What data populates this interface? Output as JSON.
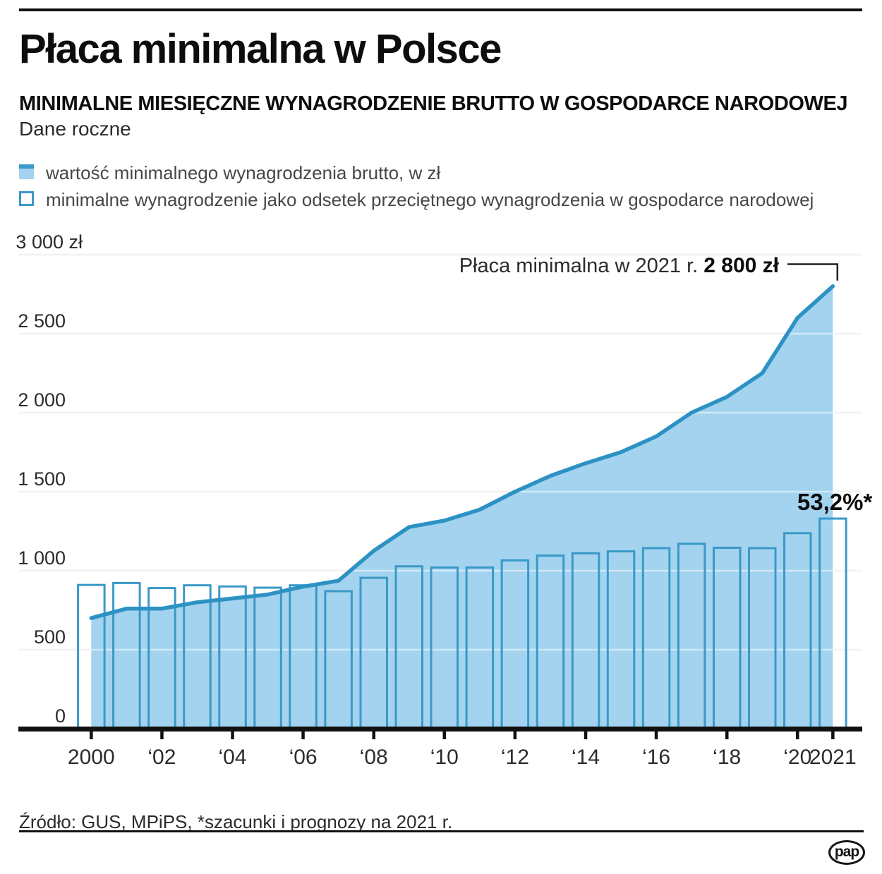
{
  "page": {
    "title": "Płaca minimalna w Polsce",
    "subtitle": "MINIMALNE MIESIĘCZNE WYNAGRODZENIE BRUTTO W GOSPODARCE NARODOWEJ",
    "period": "Dane roczne",
    "source": "Źródło: GUS, MPiPS, *szacunki i prognozy na 2021 r.",
    "logo_text": "pap"
  },
  "legend": {
    "items": [
      {
        "swatch": "area",
        "label": "wartość minimalnego wynagrodzenia brutto, w zł"
      },
      {
        "swatch": "outline",
        "label": "minimalne wynagrodzenie jako odsetek przeciętnego wynagrodzenia w gospodarce narodowej"
      }
    ]
  },
  "annotation": {
    "text": "Płaca minimalna w 2021 r.",
    "value": "2 800 zł"
  },
  "chart_data": {
    "type": "area+bar",
    "title": "Płaca minimalna w Polsce",
    "x": [
      2000,
      2001,
      2002,
      2003,
      2004,
      2005,
      2006,
      2007,
      2008,
      2009,
      2010,
      2011,
      2012,
      2013,
      2014,
      2015,
      2016,
      2017,
      2018,
      2019,
      2020,
      2021
    ],
    "series": [
      {
        "name": "wartość minimalnego wynagrodzenia brutto, w zł",
        "type": "area-line",
        "values": [
          700,
          760,
          760,
          800,
          824,
          849,
          899,
          936,
          1126,
          1276,
          1317,
          1386,
          1500,
          1600,
          1680,
          1750,
          1850,
          2000,
          2100,
          2250,
          2600,
          2800
        ]
      },
      {
        "name": "minimalne wynagrodzenie jako odsetek przeciętnego wynagrodzenia w gospodarce narodowej",
        "type": "bar",
        "unit": "%",
        "values": [
          36.4,
          36.9,
          35.6,
          36.3,
          36.0,
          35.7,
          36.3,
          34.8,
          38.2,
          41.1,
          40.8,
          40.8,
          42.6,
          43.8,
          44.4,
          44.9,
          45.7,
          46.8,
          45.8,
          45.7,
          49.5,
          53.2
        ],
        "percent_plot_scale": 25
      }
    ],
    "bar_value_label": {
      "text": "53,2%*",
      "year": 2021
    },
    "y_axis": {
      "ylim": [
        0,
        3000
      ],
      "ticks": [
        3000,
        2500,
        2000,
        1500,
        1000,
        500,
        0
      ],
      "labels": [
        "3 000 zł",
        "2 500",
        "2 000",
        "1 500",
        "1 000",
        "500",
        "0"
      ]
    },
    "x_axis": {
      "tick_years": [
        2000,
        2002,
        2004,
        2006,
        2008,
        2010,
        2012,
        2014,
        2016,
        2018,
        2020,
        2021
      ],
      "labels": [
        "2000",
        "‘02",
        "‘04",
        "‘06",
        "‘08",
        "‘10",
        "‘12",
        "‘14",
        "‘16",
        "‘18",
        "‘20",
        "2021"
      ]
    },
    "grid": true,
    "legend_position": "top-left",
    "colors": {
      "area_fill": "#a3d3ee",
      "line": "#2d92c3",
      "bar_stroke": "#3a99c8",
      "grid": "#e6e6e6",
      "grid_over_fill": "rgba(255,255,255,0.5)",
      "axis": "#111111",
      "text": "#2b2b2b",
      "label_bold": "#0d0d0d"
    }
  }
}
